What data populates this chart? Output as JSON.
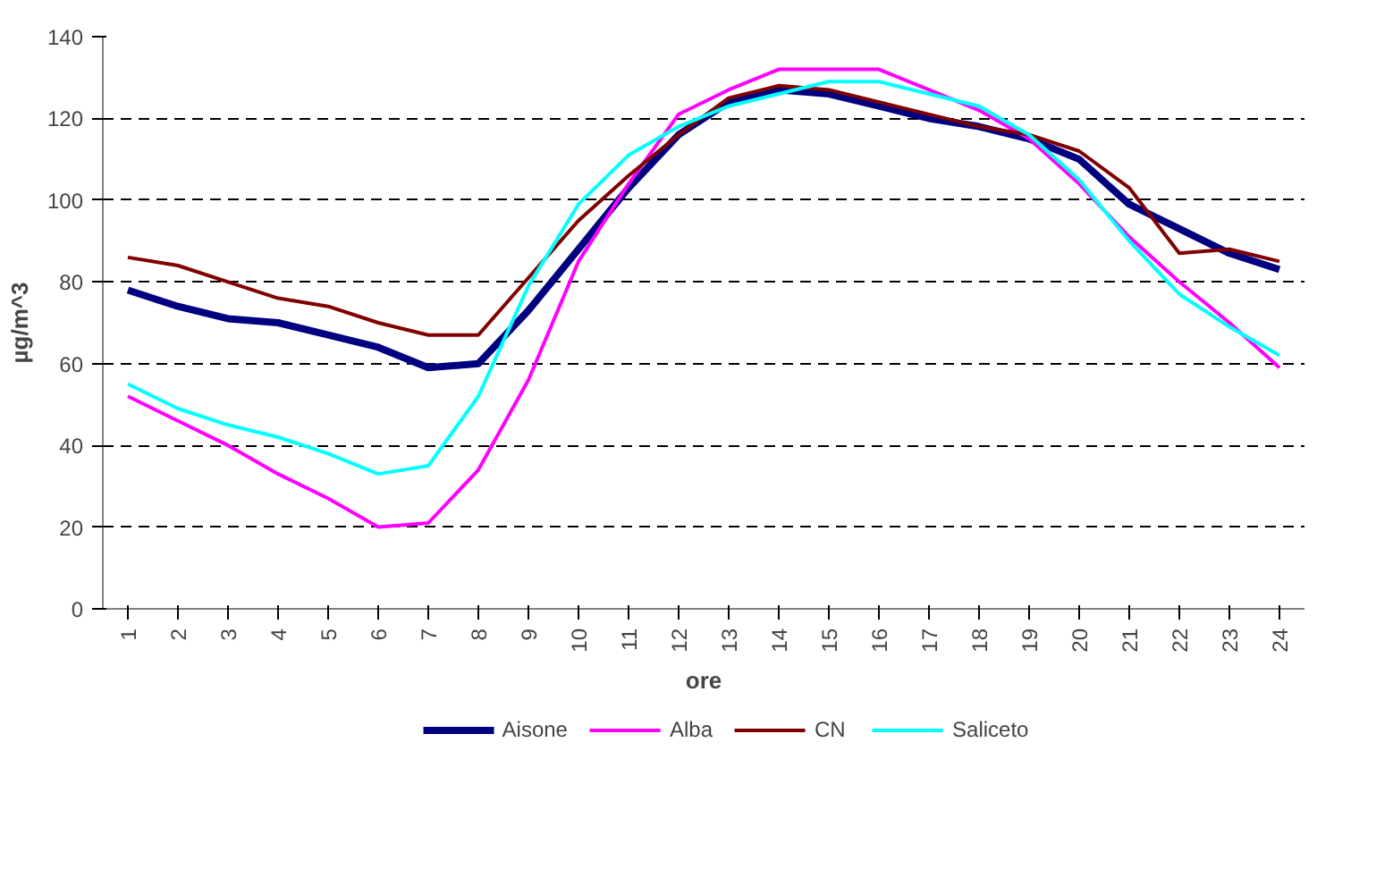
{
  "chart_data": {
    "type": "line",
    "xlabel": "ore",
    "ylabel": "µg/m^3",
    "categories": [
      "1",
      "2",
      "3",
      "4",
      "5",
      "6",
      "7",
      "8",
      "9",
      "10",
      "11",
      "12",
      "13",
      "14",
      "15",
      "16",
      "17",
      "18",
      "19",
      "20",
      "21",
      "22",
      "23",
      "24"
    ],
    "ylim": [
      0,
      140
    ],
    "yticks": [
      0,
      20,
      40,
      60,
      80,
      100,
      120,
      140
    ],
    "grid": "y",
    "legend": "bottom",
    "marker": "none",
    "line_style": "solid",
    "series": [
      {
        "name": "Aisone",
        "color": "#000080",
        "values": [
          78,
          74,
          71,
          70,
          67,
          64,
          59,
          60,
          73,
          88,
          103,
          116,
          124,
          127,
          126,
          123,
          120,
          118,
          115,
          110,
          99,
          93,
          87,
          83
        ]
      },
      {
        "name": "Alba",
        "color": "#ff00ff",
        "values": [
          52,
          46,
          40,
          33,
          27,
          20,
          21,
          34,
          56,
          85,
          104,
          121,
          127,
          132,
          132,
          132,
          127,
          122,
          115,
          104,
          91,
          80,
          70,
          59
        ]
      },
      {
        "name": "CN",
        "color": "#800000",
        "values": [
          86,
          84,
          80,
          76,
          74,
          70,
          67,
          67,
          81,
          95,
          106,
          116,
          125,
          128,
          127,
          124,
          121,
          118,
          116,
          112,
          103,
          87,
          88,
          85
        ]
      },
      {
        "name": "Saliceto",
        "color": "#00ffff",
        "values": [
          55,
          49,
          45,
          42,
          38,
          33,
          35,
          52,
          79,
          99,
          111,
          118,
          123,
          126,
          129,
          129,
          126,
          123,
          116,
          105,
          90,
          77,
          69,
          62
        ]
      }
    ]
  }
}
